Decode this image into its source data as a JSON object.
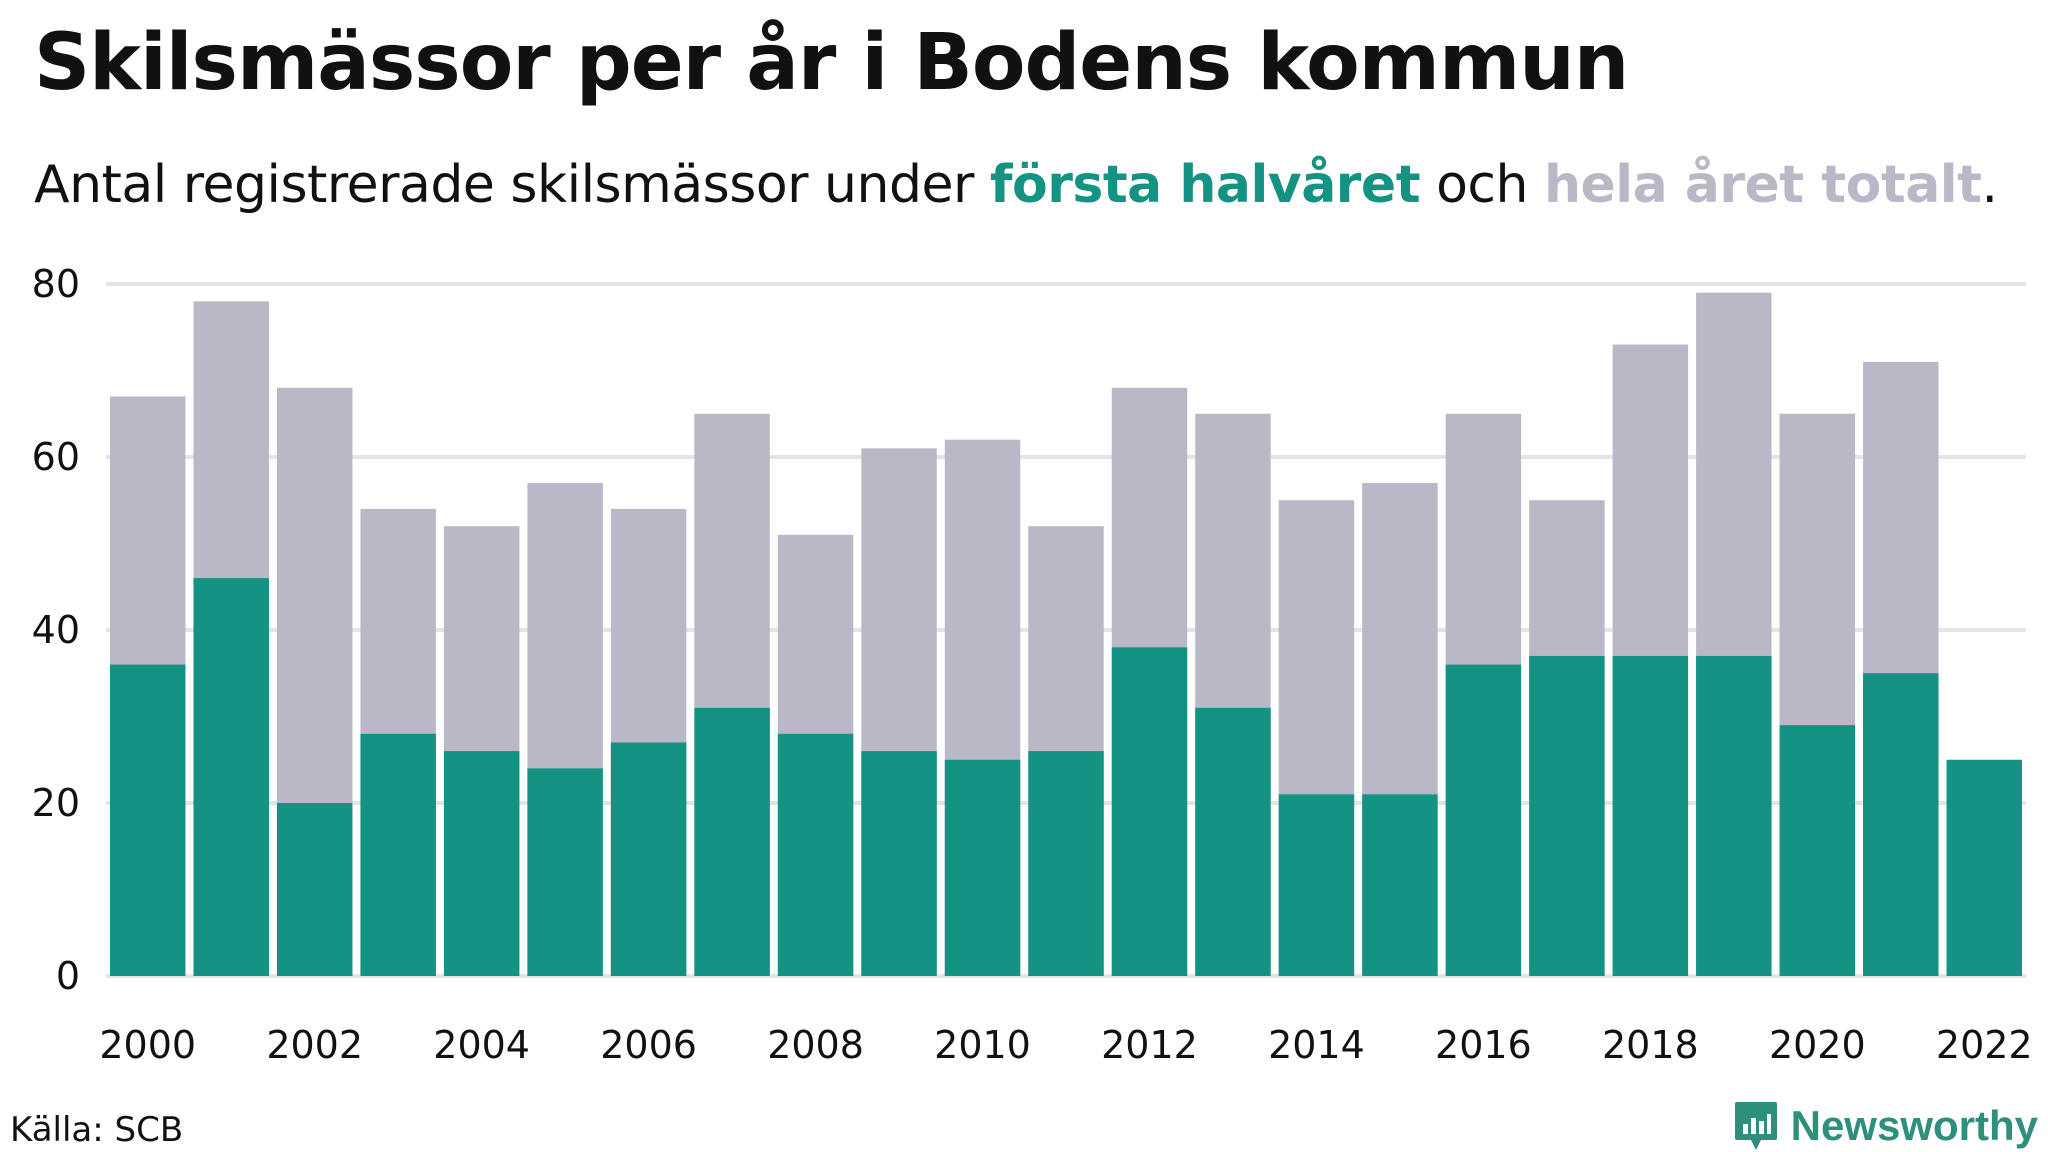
{
  "title": "Skilsmässor per år i Bodens kommun",
  "subtitle": {
    "prefix": "Antal registrerade skilsmässor under ",
    "first_half": "första halvåret",
    "middle": " och ",
    "full_year": "hela året totalt",
    "suffix": "."
  },
  "source": "Källa: SCB",
  "brand": "Newsworthy",
  "brand_icon": "newsworthy-logo-icon",
  "colors": {
    "first_half": "#149383",
    "full_year": "#bab8c7",
    "grid": "#e4e4e4",
    "brand": "#2e8f7c"
  },
  "chart_data": {
    "type": "bar",
    "stacking": "overlay",
    "categories": [
      2000,
      2001,
      2002,
      2003,
      2004,
      2005,
      2006,
      2007,
      2008,
      2009,
      2010,
      2011,
      2012,
      2013,
      2014,
      2015,
      2016,
      2017,
      2018,
      2019,
      2020,
      2021,
      2022
    ],
    "x_tick_labels": [
      "2000",
      "2002",
      "2004",
      "2006",
      "2008",
      "2010",
      "2012",
      "2014",
      "2016",
      "2018",
      "2020",
      "2022"
    ],
    "y_tick_labels": [
      "0",
      "20",
      "40",
      "60",
      "80"
    ],
    "ylim": [
      0,
      80
    ],
    "grid": true,
    "series": [
      {
        "name": "hela året totalt",
        "values": [
          67,
          78,
          68,
          54,
          52,
          57,
          54,
          65,
          51,
          61,
          62,
          52,
          68,
          65,
          55,
          57,
          65,
          55,
          73,
          79,
          65,
          71,
          null
        ]
      },
      {
        "name": "första halvåret",
        "values": [
          36,
          46,
          20,
          28,
          26,
          24,
          27,
          31,
          28,
          26,
          25,
          26,
          38,
          31,
          21,
          21,
          36,
          37,
          37,
          37,
          29,
          35,
          25
        ]
      }
    ]
  }
}
